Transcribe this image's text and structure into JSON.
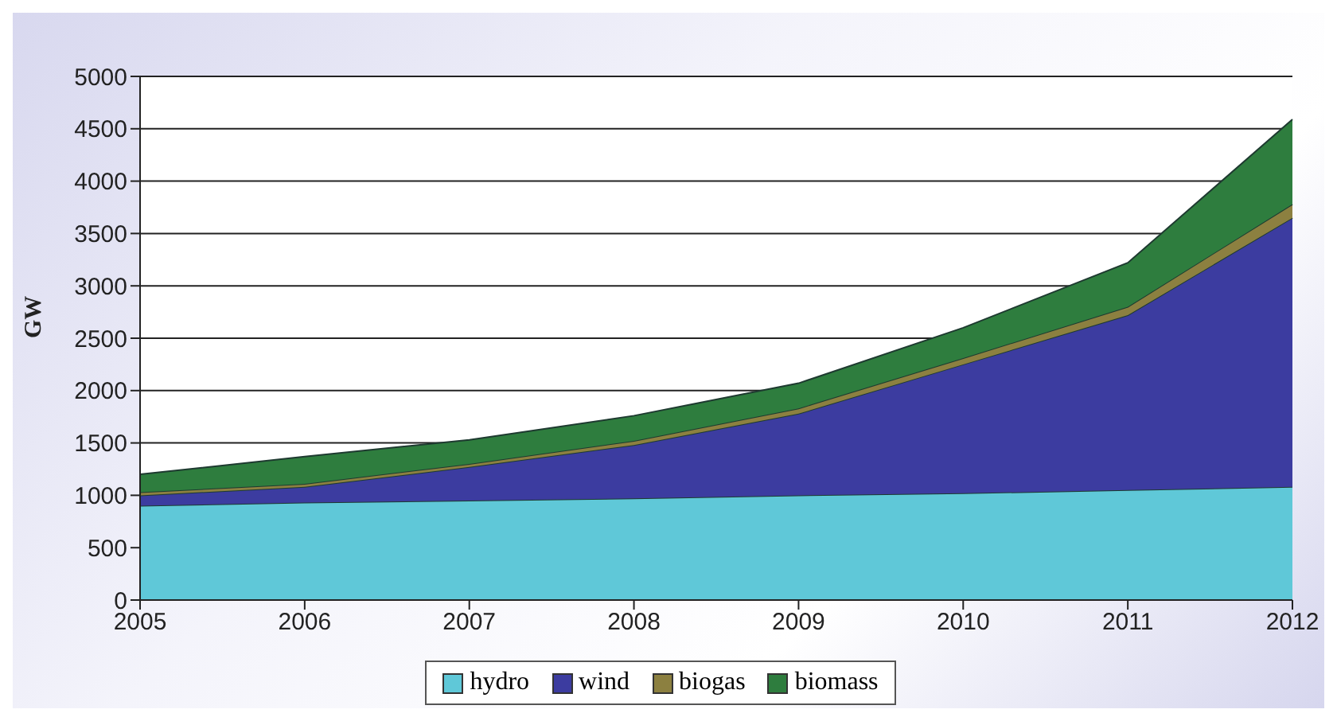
{
  "chart_data": {
    "type": "area",
    "stacked": true,
    "ylabel": "GW",
    "categories": [
      "2005",
      "2006",
      "2007",
      "2008",
      "2009",
      "2010",
      "2011",
      "2012"
    ],
    "series": [
      {
        "name": "hydro",
        "color": "#5fc8d8",
        "values": [
          900,
          930,
          950,
          970,
          1000,
          1020,
          1050,
          1080
        ]
      },
      {
        "name": "wind",
        "color": "#3c3ca0",
        "values": [
          100,
          150,
          320,
          510,
          780,
          1230,
          1670,
          2570
        ]
      },
      {
        "name": "biogas",
        "color": "#8c8040",
        "values": [
          30,
          30,
          30,
          40,
          50,
          60,
          80,
          130
        ]
      },
      {
        "name": "biomass",
        "color": "#2e7d3e",
        "values": [
          170,
          260,
          230,
          240,
          240,
          290,
          420,
          810
        ]
      }
    ],
    "ylim": [
      0,
      5000
    ],
    "yticks": [
      0,
      500,
      1000,
      1500,
      2000,
      2500,
      3000,
      3500,
      4000,
      4500,
      5000
    ],
    "grid": "y",
    "legend": "bottom"
  }
}
